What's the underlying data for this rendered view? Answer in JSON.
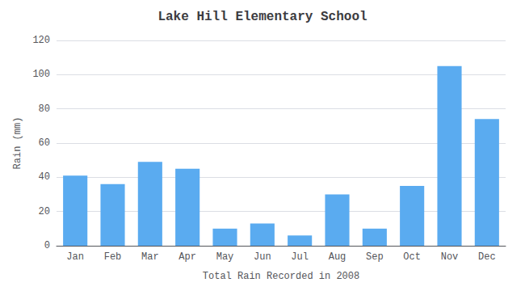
{
  "chart_data": {
    "type": "bar",
    "title": "Lake Hill Elementary School",
    "xlabel": "Total Rain Recorded in 2008",
    "ylabel": "Rain (mm)",
    "categories": [
      "Jan",
      "Feb",
      "Mar",
      "Apr",
      "May",
      "Jun",
      "Jul",
      "Aug",
      "Sep",
      "Oct",
      "Nov",
      "Dec"
    ],
    "values": [
      41,
      36,
      49,
      45,
      10,
      13,
      6,
      30,
      10,
      35,
      105,
      74
    ],
    "color": "#5aabf0",
    "ylim": [
      0,
      120
    ],
    "yticks": [
      0,
      20,
      40,
      60,
      80,
      100,
      120
    ],
    "grid": true
  }
}
